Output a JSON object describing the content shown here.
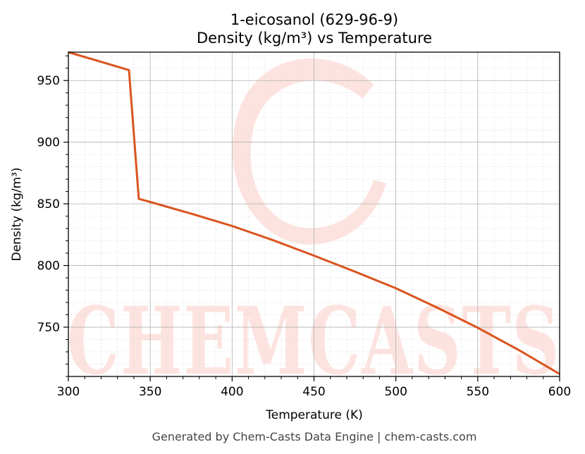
{
  "chart_data": {
    "type": "line",
    "title_line1": "1-eicosanol (629-96-9)",
    "title_line2": "Density (kg/m³) vs Temperature",
    "xlabel": "Temperature (K)",
    "ylabel": "Density (kg/m³)",
    "xlim": [
      300,
      600
    ],
    "ylim": [
      710,
      973
    ],
    "x_ticks": [
      300,
      350,
      400,
      450,
      500,
      550,
      600
    ],
    "y_ticks": [
      750,
      800,
      850,
      900,
      950
    ],
    "grid": true,
    "series": [
      {
        "color": "#d9541e",
        "points": [
          [
            300,
            973
          ],
          [
            337,
            958.5
          ],
          [
            343,
            854
          ],
          [
            350,
            851.5
          ],
          [
            375,
            842
          ],
          [
            400,
            832
          ],
          [
            425,
            820.5
          ],
          [
            450,
            808
          ],
          [
            475,
            795
          ],
          [
            500,
            781.5
          ],
          [
            525,
            766
          ],
          [
            550,
            749.5
          ],
          [
            575,
            731.5
          ],
          [
            600,
            712
          ]
        ]
      }
    ],
    "watermark": "CHEMCASTS",
    "watermark_color": "#fde3df"
  },
  "footer": "Generated by Chem-Casts Data Engine | chem-casts.com"
}
